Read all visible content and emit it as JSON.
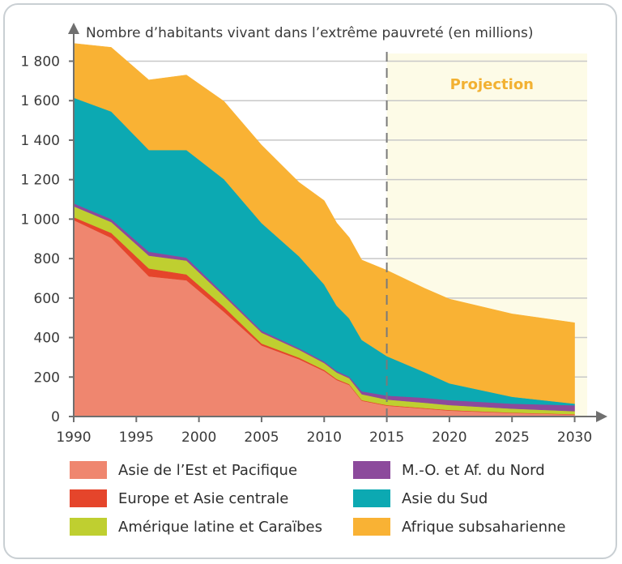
{
  "chart_data": {
    "type": "area",
    "stacked": true,
    "ylabel": "Nombre d’habitants vivant dans l’extrême pauvreté (en millions)",
    "xlabel": "",
    "x_ticks": [
      1990,
      1995,
      2000,
      2005,
      2010,
      2015,
      2020,
      2025,
      2030
    ],
    "y_ticks": [
      0,
      200,
      400,
      600,
      800,
      1000,
      1200,
      1400,
      1600,
      1800
    ],
    "y_tick_labels": [
      "0",
      "200",
      "400",
      "600",
      "800",
      "1 000",
      "1 200",
      "1 400",
      "1 600",
      "1 800"
    ],
    "xlim": [
      1990,
      2031
    ],
    "ylim": [
      0,
      1880
    ],
    "grid": true,
    "projection": {
      "label": "Projection",
      "from_year": 2015,
      "to_year": 2030
    },
    "legend_position": "bottom",
    "x": [
      1990,
      1993,
      1996,
      1999,
      2002,
      2005,
      2008,
      2010,
      2011,
      2012,
      2013,
      2015,
      2018,
      2020,
      2025,
      2030
    ],
    "series": [
      {
        "name": "Asie de l’Est et Pacifique",
        "color": "#ef866f",
        "values": [
          995,
          905,
          710,
          690,
          530,
          360,
          290,
          230,
          185,
          160,
          80,
          55,
          40,
          30,
          18,
          10
        ]
      },
      {
        "name": "Europe et Asie centrale",
        "color": "#e5452b",
        "values": [
          15,
          25,
          40,
          30,
          25,
          10,
          8,
          6,
          5,
          4,
          3,
          3,
          3,
          3,
          2,
          2
        ]
      },
      {
        "name": "Amérique latine et Caraïbes",
        "color": "#bfcf30",
        "values": [
          55,
          55,
          65,
          70,
          55,
          55,
          40,
          35,
          33,
          30,
          30,
          28,
          27,
          25,
          20,
          15
        ]
      },
      {
        "name": "M.-O. et Af. du Nord",
        "color": "#8c4a9c",
        "values": [
          15,
          15,
          20,
          15,
          12,
          10,
          8,
          8,
          8,
          8,
          15,
          20,
          25,
          25,
          25,
          30
        ]
      },
      {
        "name": "Asie du Sud",
        "color": "#0ca9b2",
        "values": [
          535,
          545,
          515,
          545,
          580,
          545,
          465,
          390,
          330,
          295,
          260,
          200,
          130,
          85,
          35,
          8
        ]
      },
      {
        "name": "Afrique subsaharienne",
        "color": "#f9b234",
        "values": [
          275,
          325,
          355,
          380,
          395,
          395,
          375,
          425,
          420,
          410,
          405,
          435,
          425,
          427,
          420,
          410
        ]
      }
    ]
  }
}
